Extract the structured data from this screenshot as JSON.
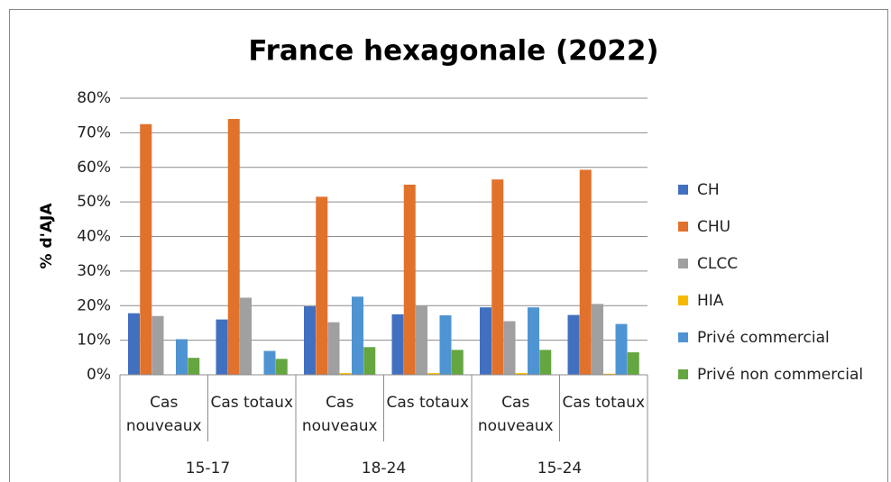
{
  "chart_data": {
    "type": "bar",
    "title": "France hexagonale (2022)",
    "y_label": "% d'AJA",
    "categories": [
      "Cas nouveaux",
      "Cas totaux",
      "Cas nouveaux",
      "Cas totaux",
      "Cas nouveaux",
      "Cas totaux"
    ],
    "groups": [
      "15-17",
      "18-24",
      "15-24"
    ],
    "series": [
      {
        "name": "CH",
        "color": "#4270c0",
        "values": [
          17.8,
          16,
          19.8,
          17.5,
          19.5,
          17.3
        ]
      },
      {
        "name": "CHU",
        "color": "#e0722c",
        "values": [
          72.5,
          74,
          51.5,
          55,
          56.5,
          59.3
        ]
      },
      {
        "name": "CLCC",
        "color": "#a0a0a0",
        "values": [
          17,
          22.3,
          15.2,
          20,
          15.5,
          20.5
        ]
      },
      {
        "name": "HIA",
        "color": "#f7b800",
        "values": [
          0,
          0,
          0.5,
          0.5,
          0.5,
          0.3
        ]
      },
      {
        "name": "Privé commercial",
        "color": "#4f94d2",
        "values": [
          10.3,
          6.9,
          22.6,
          17.2,
          19.5,
          14.7
        ]
      },
      {
        "name": "Privé non commercial",
        "color": "#64a640",
        "values": [
          4.9,
          4.6,
          8,
          7.2,
          7.2,
          6.5
        ]
      }
    ],
    "ylim": [
      0,
      80
    ],
    "yticks": [
      {
        "value": 0,
        "label": "0%"
      },
      {
        "value": 10,
        "label": "10%"
      },
      {
        "value": 20,
        "label": "20%"
      },
      {
        "value": 30,
        "label": "30%"
      },
      {
        "value": 40,
        "label": "40%"
      },
      {
        "value": 50,
        "label": "50%"
      },
      {
        "value": 60,
        "label": "60%"
      },
      {
        "value": 70,
        "label": "70%"
      },
      {
        "value": 80,
        "label": "80%"
      }
    ],
    "grid": true,
    "legend": "right"
  }
}
